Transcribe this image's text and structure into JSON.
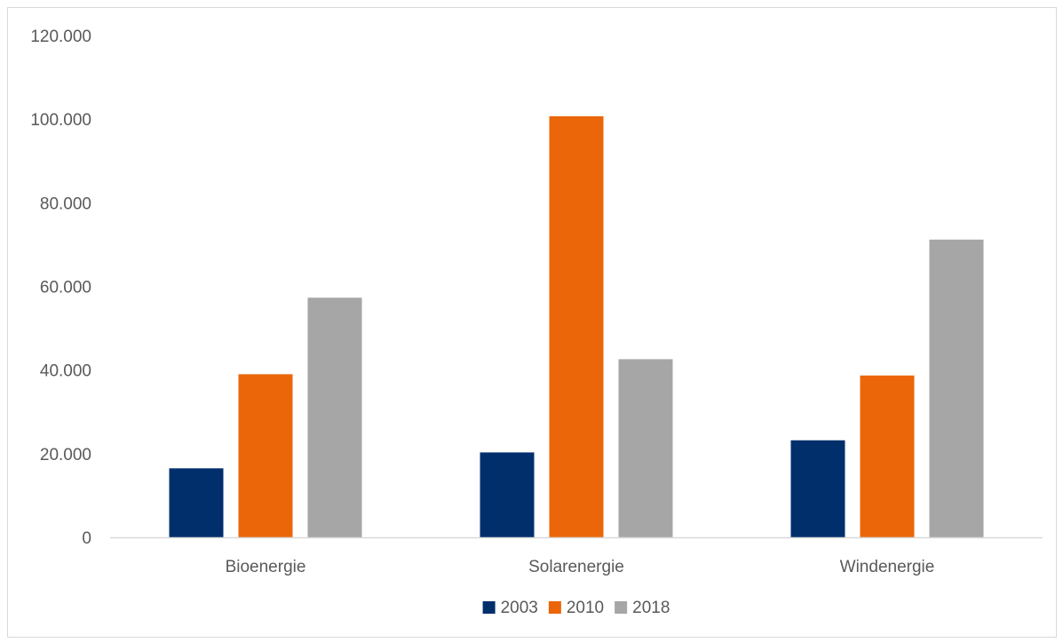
{
  "chart_data": {
    "type": "bar",
    "title": "",
    "xlabel": "",
    "ylabel": "",
    "categories": [
      "Bioenergie",
      "Solarenergie",
      "Windenergie"
    ],
    "series": [
      {
        "name": "2003",
        "color": "#002f6c",
        "values": [
          16500,
          20300,
          23200
        ]
      },
      {
        "name": "2010",
        "color": "#eb6608",
        "values": [
          39000,
          100700,
          38700
        ]
      },
      {
        "name": "2018",
        "color": "#a6a6a6",
        "values": [
          57300,
          42600,
          71200
        ]
      }
    ],
    "ylim": [
      0,
      120000
    ],
    "y_ticks": [
      {
        "value": 0,
        "label": "0"
      },
      {
        "value": 20000,
        "label": "20.000"
      },
      {
        "value": 40000,
        "label": "40.000"
      },
      {
        "value": 60000,
        "label": "60.000"
      },
      {
        "value": 80000,
        "label": "80.000"
      },
      {
        "value": 100000,
        "label": "100.000"
      },
      {
        "value": 120000,
        "label": "120.000"
      }
    ],
    "grid": false,
    "legend_position": "bottom"
  }
}
